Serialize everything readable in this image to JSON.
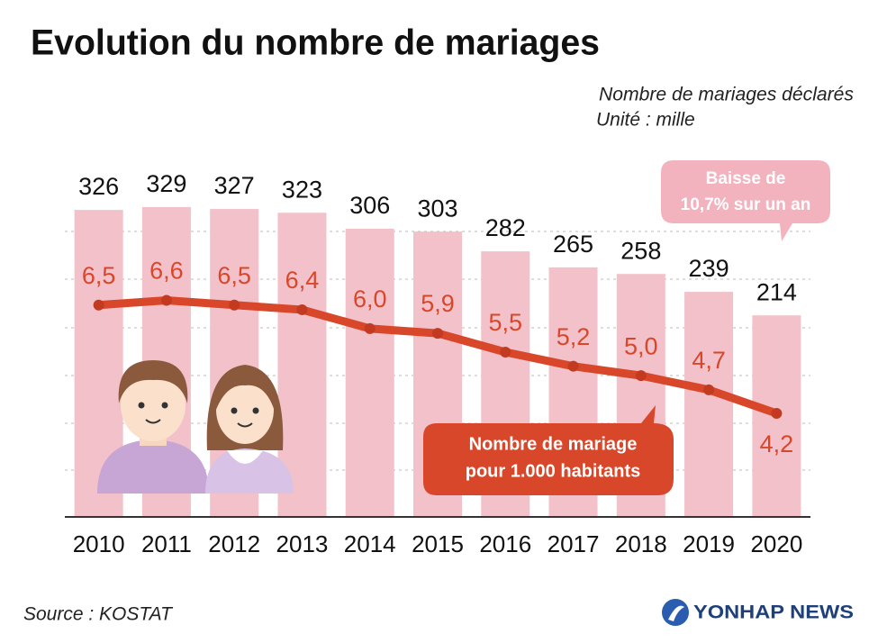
{
  "chart_data": {
    "type": "bar_line",
    "title": "Evolution du nombre de mariages",
    "subtitle": "Unité : mille",
    "categories": [
      "2010",
      "2011",
      "2012",
      "2013",
      "2014",
      "2015",
      "2016",
      "2017",
      "2018",
      "2019",
      "2020"
    ],
    "series": [
      {
        "name": "Nombre de mariages déclarés",
        "type": "bar",
        "color": "#f2c1c9",
        "values": [
          326,
          329,
          327,
          323,
          306,
          303,
          282,
          265,
          258,
          239,
          214
        ]
      },
      {
        "name": [
          "Nombre de mariage",
          "pour 1.000 habitants"
        ],
        "type": "line",
        "axis": "y2",
        "color": "#d9472b",
        "values": [
          6.5,
          6.6,
          6.5,
          6.4,
          6.0,
          5.9,
          5.5,
          5.2,
          5.0,
          4.7,
          4.2
        ],
        "value_labels": [
          "6,5",
          "6,6",
          "6,5",
          "6,4",
          "6,0",
          "5,9",
          "5,5",
          "5,2",
          "5,0",
          "4,7",
          "4,2"
        ]
      }
    ],
    "ylim": [
      0,
      350
    ],
    "y2lim": [
      2,
      9
    ],
    "annotations": [
      [
        "Baisse de",
        "10,7% sur un an"
      ]
    ],
    "source": "Source : KOSTAT",
    "credit": "YONHAP NEWS"
  }
}
